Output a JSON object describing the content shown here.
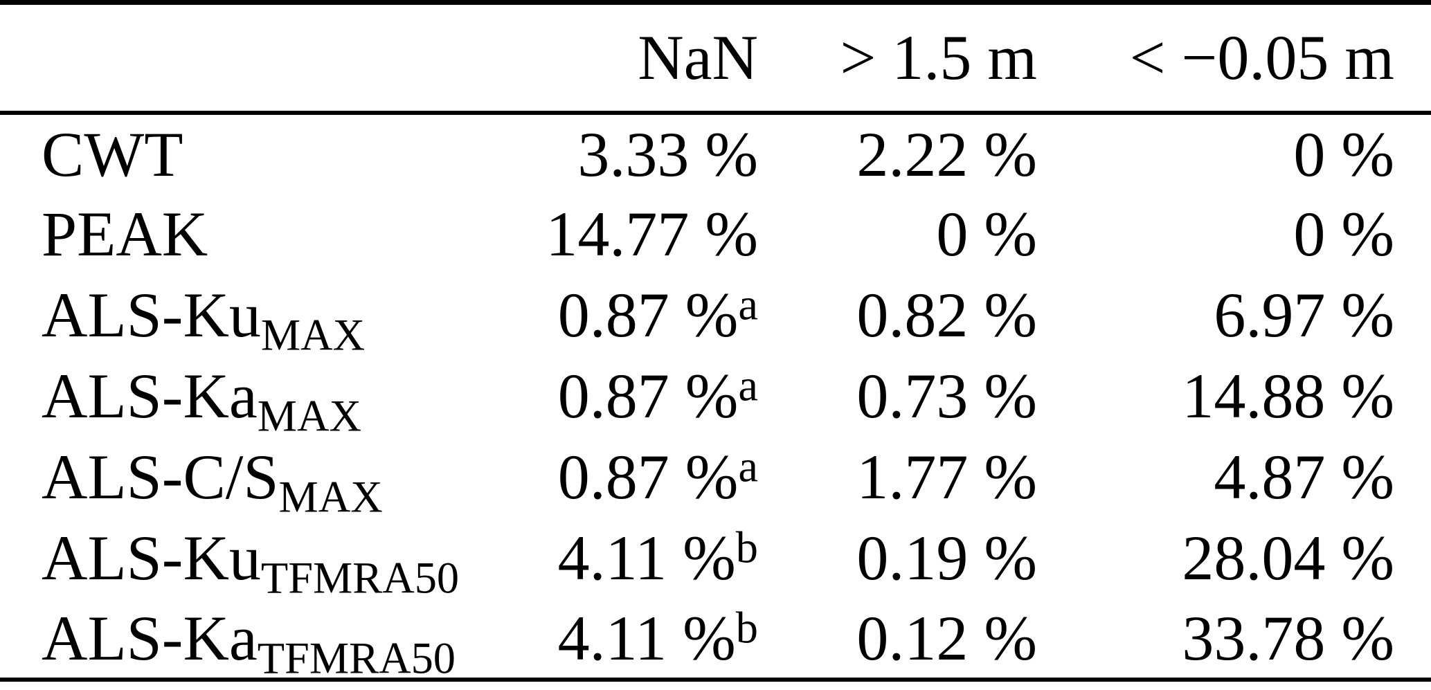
{
  "colors": {
    "text": "#000000",
    "rule": "#000000",
    "background": "#ffffff"
  },
  "table": {
    "columns": {
      "label": "",
      "nan": "NaN",
      "gt": "> 1.5 m",
      "lt": "< −0.05 m"
    },
    "rows": [
      {
        "label": {
          "base": "CWT",
          "sub": ""
        },
        "cells": [
          {
            "v": "3.33 %",
            "sup": ""
          },
          {
            "v": "2.22 %",
            "sup": ""
          },
          {
            "v": "0 %",
            "sup": ""
          }
        ]
      },
      {
        "label": {
          "base": "PEAK",
          "sub": ""
        },
        "cells": [
          {
            "v": "14.77 %",
            "sup": ""
          },
          {
            "v": "0 %",
            "sup": ""
          },
          {
            "v": "0 %",
            "sup": ""
          }
        ]
      },
      {
        "label": {
          "base": "ALS-Ku",
          "sub": "MAX"
        },
        "cells": [
          {
            "v": "0.87 %",
            "sup": "a"
          },
          {
            "v": "0.82 %",
            "sup": ""
          },
          {
            "v": "6.97 %",
            "sup": ""
          }
        ]
      },
      {
        "label": {
          "base": "ALS-Ka",
          "sub": "MAX"
        },
        "cells": [
          {
            "v": "0.87 %",
            "sup": "a"
          },
          {
            "v": "0.73 %",
            "sup": ""
          },
          {
            "v": "14.88 %",
            "sup": ""
          }
        ]
      },
      {
        "label": {
          "base": "ALS-C/S",
          "sub": "MAX"
        },
        "cells": [
          {
            "v": "0.87 %",
            "sup": "a"
          },
          {
            "v": "1.77 %",
            "sup": ""
          },
          {
            "v": "4.87 %",
            "sup": ""
          }
        ]
      },
      {
        "label": {
          "base": "ALS-Ku",
          "sub": "TFMRA50"
        },
        "cells": [
          {
            "v": "4.11 %",
            "sup": "b"
          },
          {
            "v": "0.19 %",
            "sup": ""
          },
          {
            "v": "28.04 %",
            "sup": ""
          }
        ]
      },
      {
        "label": {
          "base": "ALS-Ka",
          "sub": "TFMRA50"
        },
        "cells": [
          {
            "v": "4.11 %",
            "sup": "b"
          },
          {
            "v": "0.12 %",
            "sup": ""
          },
          {
            "v": "33.78 %",
            "sup": ""
          }
        ]
      }
    ]
  },
  "chart_data": {
    "type": "table",
    "title": "",
    "columns": [
      "",
      "NaN",
      "> 1.5 m",
      "< −0.05 m"
    ],
    "rows": [
      [
        "CWT",
        "3.33 %",
        "2.22 %",
        "0 %"
      ],
      [
        "PEAK",
        "14.77 %",
        "0 %",
        "0 %"
      ],
      [
        "ALS-Ku_MAX",
        "0.87 %^a",
        "0.82 %",
        "6.97 %"
      ],
      [
        "ALS-Ka_MAX",
        "0.87 %^a",
        "0.73 %",
        "14.88 %"
      ],
      [
        "ALS-C/S_MAX",
        "0.87 %^a",
        "1.77 %",
        "4.87 %"
      ],
      [
        "ALS-Ku_TFMRA50",
        "4.11 %^b",
        "0.19 %",
        "28.04 %"
      ],
      [
        "ALS-Ka_TFMRA50",
        "4.11 %^b",
        "0.12 %",
        "33.78 %"
      ]
    ]
  }
}
